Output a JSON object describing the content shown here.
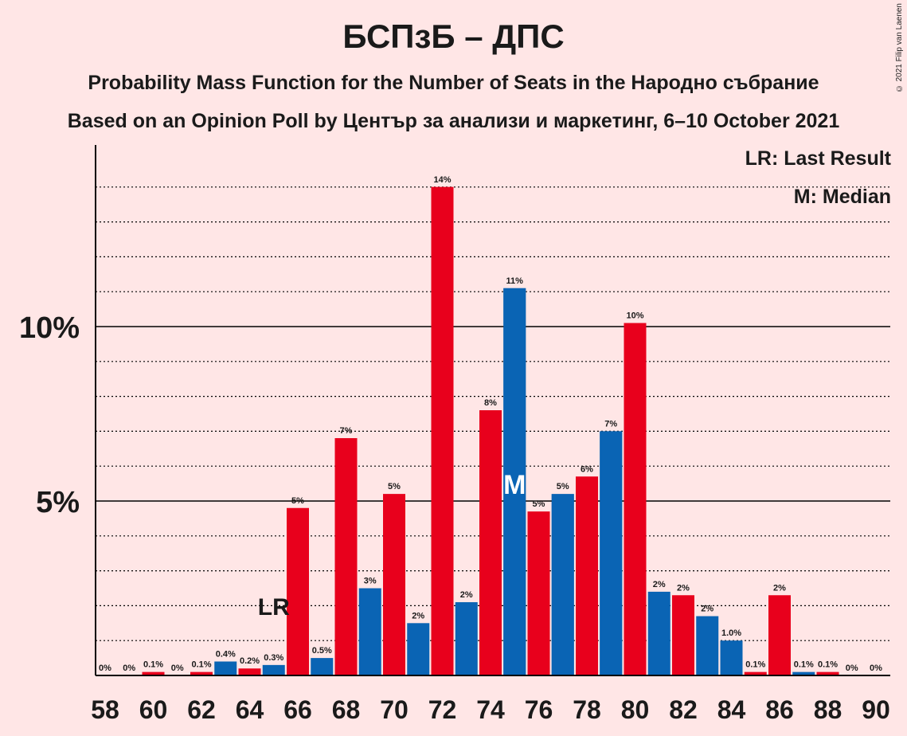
{
  "title": "БСПзБ – ДПС",
  "subtitle1": "Probability Mass Function for the Number of Seats in the Народно събрание",
  "subtitle2": "Based on an Opinion Poll by Център за анализи и маркетинг, 6–10 October 2021",
  "credit": "© 2021 Filip van Laenen",
  "legend": {
    "lr": "LR: Last Result",
    "median": "M: Median"
  },
  "colors": {
    "background": "#ffe6e6",
    "red": "#e8001c",
    "blue": "#0a64b4",
    "text": "#1a1a1a"
  },
  "chart_data": {
    "type": "bar",
    "title": "БСПзБ – ДПС",
    "x": [
      58,
      59,
      60,
      61,
      62,
      63,
      64,
      65,
      66,
      67,
      68,
      69,
      70,
      71,
      72,
      73,
      74,
      75,
      76,
      77,
      78,
      79,
      80,
      81,
      82,
      83,
      84,
      85,
      86,
      87,
      88,
      89,
      90
    ],
    "values": [
      0,
      0,
      0.1,
      0,
      0.1,
      0.4,
      0.2,
      0.3,
      4.8,
      0.5,
      6.8,
      2.5,
      5.2,
      1.5,
      14.0,
      2.1,
      7.6,
      11.1,
      4.7,
      5.2,
      5.7,
      7.0,
      10.1,
      2.4,
      2.3,
      1.7,
      1.0,
      0.1,
      2.3,
      0.1,
      0.1,
      0,
      0
    ],
    "labels": [
      "0%",
      "0%",
      "0.1%",
      "0%",
      "0.1%",
      "0.4%",
      "0.2%",
      "0.3%",
      "5%",
      "0.5%",
      "7%",
      "3%",
      "5%",
      "2%",
      "14%",
      "2%",
      "8%",
      "11%",
      "5%",
      "5%",
      "6%",
      "7%",
      "10%",
      "2%",
      "2%",
      "2%",
      "1.0%",
      "0.1%",
      "2%",
      "0.1%",
      "0.1%",
      "0%",
      "0%"
    ],
    "bar_colors": [
      "red",
      "blue",
      "red",
      "blue",
      "red",
      "blue",
      "red",
      "blue",
      "red",
      "blue",
      "red",
      "blue",
      "red",
      "blue",
      "red",
      "blue",
      "red",
      "blue",
      "red",
      "blue",
      "red",
      "blue",
      "red",
      "blue",
      "red",
      "blue",
      "blue",
      "red",
      "red",
      "blue",
      "red",
      "blue",
      "red"
    ],
    "x_tick_labels": [
      "58",
      "60",
      "62",
      "64",
      "66",
      "68",
      "70",
      "72",
      "74",
      "76",
      "78",
      "80",
      "82",
      "84",
      "86",
      "88",
      "90"
    ],
    "y_tick_labels": [
      "5%",
      "10%"
    ],
    "y_ticks": [
      5,
      10
    ],
    "ylim": [
      0,
      15.2
    ],
    "last_result_seat": 65,
    "last_result_marker": "LR",
    "median_seat": 75,
    "median_marker": "M",
    "grid": true
  }
}
